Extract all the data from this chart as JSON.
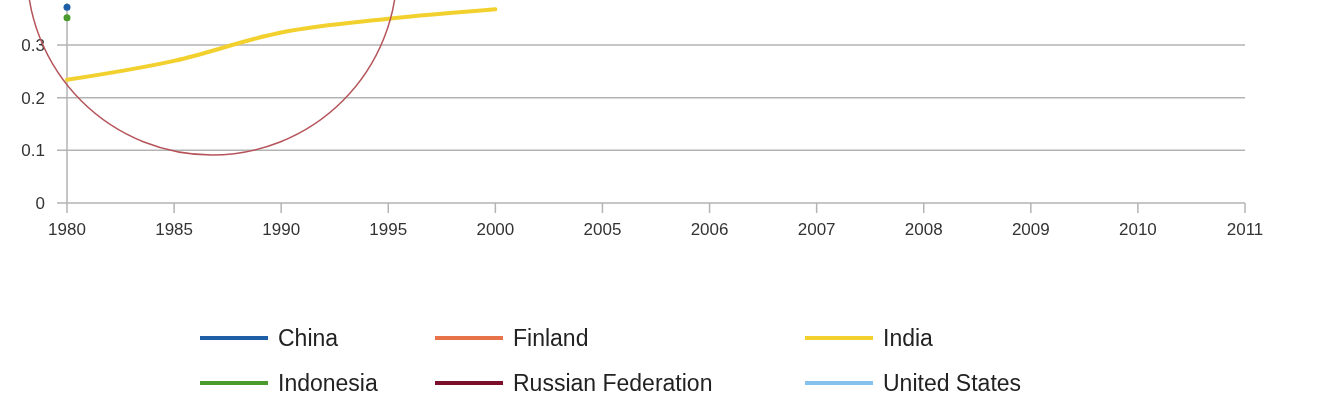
{
  "chart_data": {
    "type": "line",
    "categories": [
      "1980",
      "1985",
      "1990",
      "1995",
      "2000",
      "2005",
      "2006",
      "2007",
      "2008",
      "2009",
      "2010",
      "2011"
    ],
    "series": [
      {
        "name": "China",
        "color": "#1f5fa8",
        "marker": "circle",
        "values": [
          0.372,
          null,
          null,
          null,
          null,
          null,
          null,
          null,
          null,
          null,
          null,
          null
        ]
      },
      {
        "name": "Finland",
        "color": "#e8734a",
        "values": [
          null,
          null,
          null,
          null,
          null,
          null,
          null,
          null,
          null,
          null,
          null,
          null
        ]
      },
      {
        "name": "India",
        "color": "#f2d12e",
        "values": [
          0.234,
          0.27,
          0.324,
          0.35,
          0.368,
          null,
          null,
          null,
          null,
          null,
          null,
          null
        ]
      },
      {
        "name": "Indonesia",
        "color": "#4a9a2e",
        "marker": "circle",
        "values": [
          0.352,
          null,
          null,
          null,
          null,
          null,
          null,
          null,
          null,
          null,
          null,
          null
        ]
      },
      {
        "name": "Russian Federation",
        "color": "#7b0e2b",
        "values": [
          null,
          null,
          null,
          null,
          null,
          null,
          null,
          null,
          null,
          null,
          null,
          null
        ]
      },
      {
        "name": "United States",
        "color": "#86c3ec",
        "values": [
          null,
          null,
          null,
          null,
          null,
          null,
          null,
          null,
          null,
          null,
          null,
          null
        ]
      }
    ],
    "ylim": [
      0,
      0.38
    ],
    "yticks": [
      0,
      0.1,
      0.2,
      0.3
    ],
    "grid": "y",
    "legend": "bottom",
    "marker": "none",
    "line_style": "solid"
  }
}
